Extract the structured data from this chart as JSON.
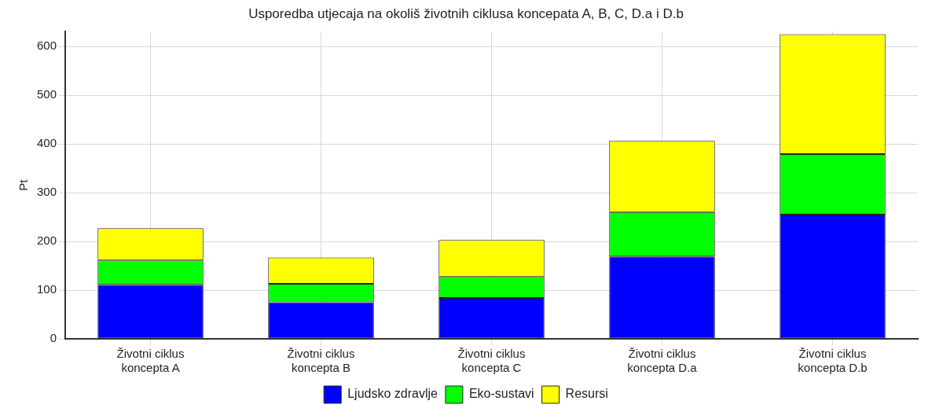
{
  "chart_data": {
    "type": "bar",
    "title": "Usporedba utjecaja na okoliš životnih ciklusa koncepata A, B, C, D.a i D.b",
    "ylabel": "Pt",
    "categories": [
      "Životni ciklus koncepta A",
      "Životni ciklus koncepta B",
      "Životni ciklus koncepta C",
      "Životni ciklus koncepta D.a",
      "Životni ciklus koncepta D.b"
    ],
    "series": [
      {
        "name": "Ljudsko zdravlje",
        "color": "#0000ff",
        "values": [
          111,
          75,
          84,
          169,
          255
        ]
      },
      {
        "name": "Eko-sustavi",
        "color": "#00ff00",
        "values": [
          50,
          38,
          43,
          91,
          124
        ]
      },
      {
        "name": "Resursi",
        "color": "#ffff00",
        "values": [
          66,
          54,
          76,
          146,
          246
        ]
      }
    ],
    "stacked": true,
    "ylim": [
      0,
      630
    ],
    "yticks": [
      0,
      100,
      200,
      300,
      400,
      500,
      600
    ],
    "grid": true,
    "legend": "bottom"
  }
}
